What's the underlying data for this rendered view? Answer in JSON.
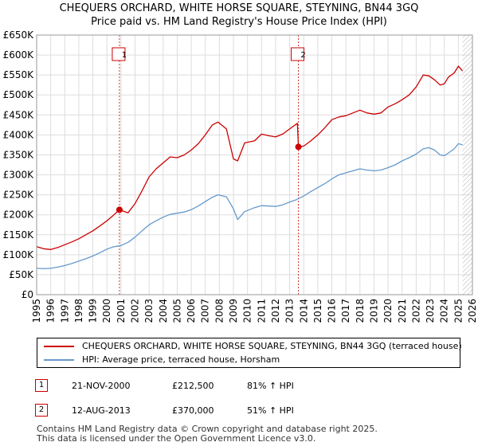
{
  "title_line1": "CHEQUERS ORCHARD, WHITE HORSE SQUARE, STEYNING, BN44 3GQ",
  "title_line2": "Price paid vs. HM Land Registry's House Price Index (HPI)",
  "chart_data": {
    "type": "line",
    "ylim": [
      0,
      650000
    ],
    "xlim": [
      1995,
      2026
    ],
    "y_ticks": [
      {
        "value": 0,
        "label": "£0"
      },
      {
        "value": 50000,
        "label": "£50K"
      },
      {
        "value": 100000,
        "label": "£100K"
      },
      {
        "value": 150000,
        "label": "£150K"
      },
      {
        "value": 200000,
        "label": "£200K"
      },
      {
        "value": 250000,
        "label": "£250K"
      },
      {
        "value": 300000,
        "label": "£300K"
      },
      {
        "value": 350000,
        "label": "£350K"
      },
      {
        "value": 400000,
        "label": "£400K"
      },
      {
        "value": 450000,
        "label": "£450K"
      },
      {
        "value": 500000,
        "label": "£500K"
      },
      {
        "value": 550000,
        "label": "£550K"
      },
      {
        "value": 600000,
        "label": "£600K"
      },
      {
        "value": 650000,
        "label": "£650K"
      }
    ],
    "x_ticks": [
      "1995",
      "1996",
      "1997",
      "1998",
      "1999",
      "2000",
      "2001",
      "2002",
      "2003",
      "2004",
      "2005",
      "2006",
      "2007",
      "2008",
      "2009",
      "2010",
      "2011",
      "2012",
      "2013",
      "2014",
      "2015",
      "2016",
      "2017",
      "2018",
      "2019",
      "2020",
      "2021",
      "2022",
      "2023",
      "2024",
      "2025",
      "2026"
    ],
    "grid": true,
    "series": [
      {
        "name": "CHEQUERS ORCHARD, WHITE HORSE SQUARE, STEYNING, BN44 3GQ (terraced house)",
        "color": "#cc0000",
        "x": [
          1995.0,
          1995.5,
          1996.0,
          1996.5,
          1997.0,
          1997.5,
          1998.0,
          1998.5,
          1999.0,
          1999.5,
          2000.0,
          2000.5,
          2000.89,
          2001.5,
          2002.0,
          2002.5,
          2003.0,
          2003.5,
          2004.0,
          2004.5,
          2005.0,
          2005.5,
          2006.0,
          2006.5,
          2007.0,
          2007.5,
          2007.9,
          2008.5,
          2009.0,
          2009.3,
          2009.8,
          2010.5,
          2011.0,
          2011.5,
          2012.0,
          2012.5,
          2013.0,
          2013.55,
          2013.62,
          2014.0,
          2014.5,
          2015.0,
          2015.5,
          2016.0,
          2016.5,
          2017.0,
          2017.5,
          2018.0,
          2018.5,
          2019.0,
          2019.5,
          2020.0,
          2020.5,
          2021.0,
          2021.5,
          2022.0,
          2022.5,
          2022.9,
          2023.3,
          2023.7,
          2024.0,
          2024.3,
          2024.7,
          2025.0,
          2025.3
        ],
        "y": [
          120000,
          115000,
          113000,
          118000,
          125000,
          132000,
          140000,
          150000,
          160000,
          172000,
          185000,
          200000,
          212500,
          205000,
          228000,
          260000,
          295000,
          315000,
          330000,
          345000,
          343000,
          350000,
          362000,
          378000,
          400000,
          425000,
          432000,
          415000,
          340000,
          335000,
          380000,
          385000,
          402000,
          398000,
          395000,
          402000,
          415000,
          429000,
          370000,
          372000,
          385000,
          400000,
          418000,
          438000,
          445000,
          448000,
          455000,
          462000,
          455000,
          452000,
          455000,
          470000,
          478000,
          488000,
          500000,
          520000,
          550000,
          548000,
          538000,
          525000,
          528000,
          545000,
          555000,
          572000,
          560000
        ]
      },
      {
        "name": "HPI: Average price, terraced house, Horsham",
        "color": "#6699cc",
        "x": [
          1995.0,
          1995.5,
          1996.0,
          1996.5,
          1997.0,
          1997.5,
          1998.0,
          1998.5,
          1999.0,
          1999.5,
          2000.0,
          2000.5,
          2001.0,
          2001.5,
          2002.0,
          2002.5,
          2003.0,
          2003.5,
          2004.0,
          2004.5,
          2005.0,
          2005.5,
          2006.0,
          2006.5,
          2007.0,
          2007.5,
          2007.9,
          2008.5,
          2009.0,
          2009.3,
          2009.8,
          2010.5,
          2011.0,
          2011.5,
          2012.0,
          2012.5,
          2013.0,
          2013.5,
          2014.0,
          2014.5,
          2015.0,
          2015.5,
          2016.0,
          2016.5,
          2017.0,
          2017.5,
          2018.0,
          2018.5,
          2019.0,
          2019.5,
          2020.0,
          2020.5,
          2021.0,
          2021.5,
          2022.0,
          2022.5,
          2022.9,
          2023.3,
          2023.7,
          2024.0,
          2024.3,
          2024.7,
          2025.0,
          2025.3
        ],
        "y": [
          66000,
          65000,
          66000,
          69000,
          73000,
          78000,
          84000,
          90000,
          97000,
          105000,
          114000,
          120000,
          123000,
          131000,
          144000,
          160000,
          175000,
          185000,
          194000,
          201000,
          204000,
          207000,
          213000,
          222000,
          233000,
          244000,
          250000,
          245000,
          215000,
          188000,
          208000,
          218000,
          223000,
          222000,
          221000,
          225000,
          232000,
          238000,
          247000,
          258000,
          268000,
          278000,
          290000,
          300000,
          305000,
          310000,
          315000,
          312000,
          310000,
          312000,
          318000,
          325000,
          335000,
          343000,
          352000,
          365000,
          368000,
          362000,
          350000,
          348000,
          355000,
          365000,
          378000,
          375000
        ]
      }
    ],
    "sales": [
      {
        "marker": "1",
        "x": 2000.89,
        "y": 212500
      },
      {
        "marker": "2",
        "x": 2013.62,
        "y": 370000
      }
    ],
    "hatch_from": 2025.3
  },
  "legend": {
    "property_label": "CHEQUERS ORCHARD, WHITE HORSE SQUARE, STEYNING, BN44 3GQ (terraced house)",
    "hpi_label": "HPI: Average price, terraced house, Horsham",
    "property_color": "#cc0000",
    "hpi_color": "#6699cc"
  },
  "sales_table": [
    {
      "num": "1",
      "date": "21-NOV-2000",
      "price": "£212,500",
      "hpi": "81% ↑ HPI"
    },
    {
      "num": "2",
      "date": "12-AUG-2013",
      "price": "£370,000",
      "hpi": "51% ↑ HPI"
    }
  ],
  "footer": {
    "line1": "Contains HM Land Registry data © Crown copyright and database right 2025.",
    "line2": "This data is licensed under the Open Government Licence v3.0."
  }
}
